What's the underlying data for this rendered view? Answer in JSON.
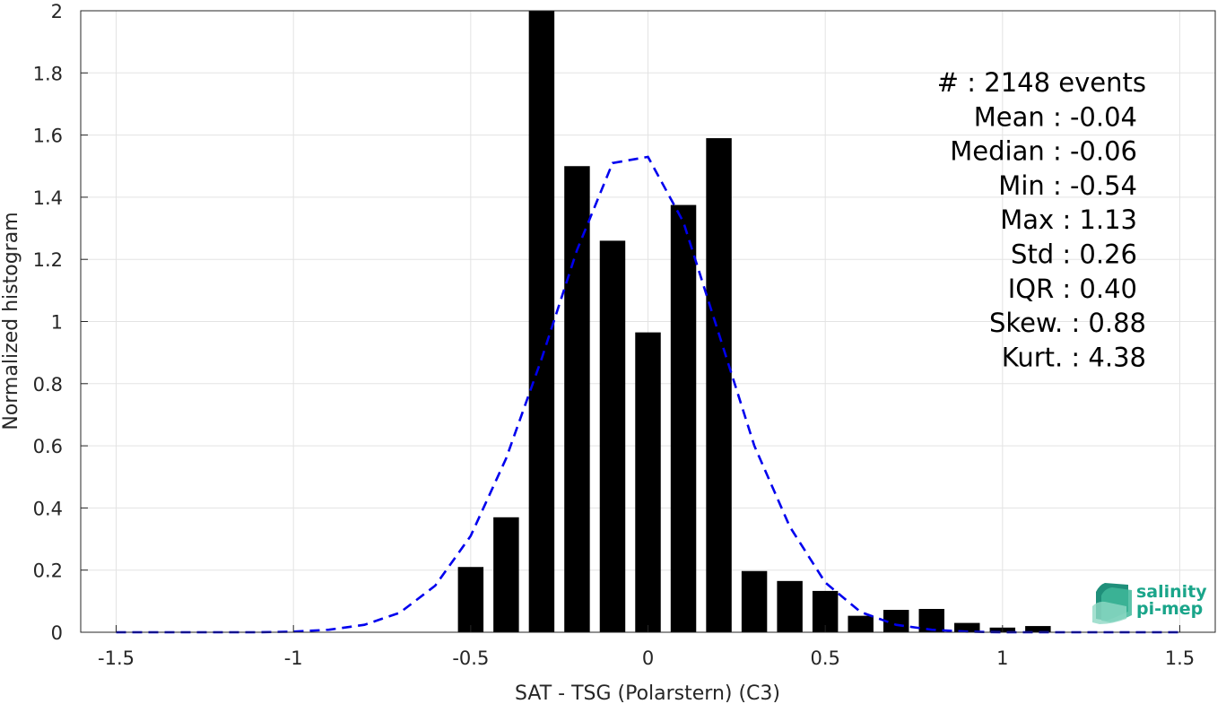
{
  "chart_data": {
    "type": "bar",
    "xlabel": "SAT - TSG (Polarstern) (C3)",
    "ylabel": "Normalized histogram",
    "xlim": [
      -1.6,
      1.6
    ],
    "ylim": [
      0,
      2
    ],
    "grid": true,
    "x_ticks": [
      "-1.5",
      "-1",
      "-0.5",
      "0",
      "0.5",
      "1",
      "1.5"
    ],
    "x_tick_values": [
      -1.5,
      -1,
      -0.5,
      0,
      0.5,
      1,
      1.5
    ],
    "y_ticks": [
      "0",
      "0.2",
      "0.4",
      "0.6",
      "0.8",
      "1",
      "1.2",
      "1.4",
      "1.6",
      "1.8",
      "2"
    ],
    "y_tick_values": [
      0,
      0.2,
      0.4,
      0.6,
      0.8,
      1,
      1.2,
      1.4,
      1.6,
      1.8,
      2
    ],
    "series": [
      {
        "type": "bar",
        "color": "#000000",
        "x": [
          -0.5,
          -0.4,
          -0.3,
          -0.2,
          -0.1,
          0.0,
          0.1,
          0.2,
          0.3,
          0.4,
          0.5,
          0.6,
          0.7,
          0.8,
          0.9,
          1.0,
          1.1
        ],
        "values": [
          0.21,
          0.37,
          2.0,
          1.5,
          1.26,
          0.965,
          1.375,
          1.59,
          0.197,
          0.165,
          0.133,
          0.053,
          0.072,
          0.075,
          0.03,
          0.015,
          0.02
        ]
      },
      {
        "type": "line",
        "style": "dashed",
        "color": "#0000ee",
        "x": [
          -1.5,
          -1.4,
          -1.3,
          -1.2,
          -1.1,
          -1.0,
          -0.9,
          -0.8,
          -0.7,
          -0.6,
          -0.5,
          -0.4,
          -0.3,
          -0.2,
          -0.1,
          0.0,
          0.1,
          0.2,
          0.3,
          0.4,
          0.5,
          0.6,
          0.7,
          0.8,
          0.9,
          1.0,
          1.1,
          1.2,
          1.3,
          1.4,
          1.5
        ],
        "values": [
          0.0,
          0.0,
          0.0,
          0.0,
          0.0,
          0.002,
          0.008,
          0.024,
          0.063,
          0.15,
          0.31,
          0.56,
          0.88,
          1.23,
          1.51,
          1.53,
          1.32,
          0.96,
          0.6,
          0.34,
          0.16,
          0.065,
          0.024,
          0.008,
          0.002,
          0.0,
          0.0,
          0.0,
          0.0,
          0.0,
          0.0
        ]
      }
    ],
    "annotations": [
      "#  : 2148 events",
      "Mean : -0.04",
      "Median : -0.06",
      "Min : -0.54",
      "Max : 1.13",
      "Std : 0.26",
      "IQR : 0.40",
      "Skew. : 0.88",
      "Kurt. : 4.38"
    ]
  },
  "logo": {
    "line1": "salinity",
    "line2": "pi-mep",
    "color": "#1aa58a"
  }
}
